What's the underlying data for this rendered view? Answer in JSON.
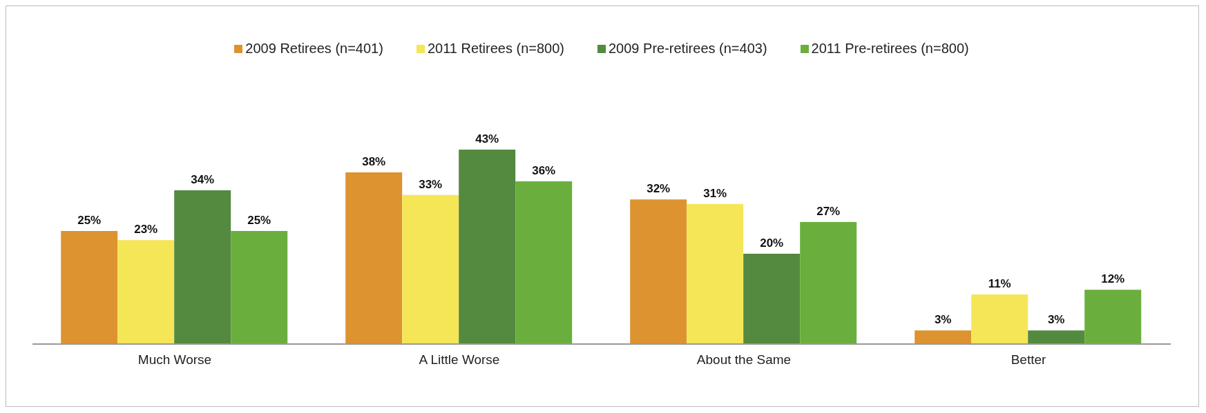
{
  "chart_data": {
    "type": "bar",
    "categories": [
      "Much Worse",
      "A Little Worse",
      "About the Same",
      "Better"
    ],
    "series": [
      {
        "name": "2009 Retirees (n=401)",
        "color": "#dd9330",
        "values": [
          25,
          38,
          32,
          3
        ],
        "value_labels": [
          "25%",
          "38%",
          "32%",
          "3%"
        ]
      },
      {
        "name": "2011 Retirees (n=800)",
        "color": "#f5e658",
        "values": [
          23,
          33,
          31,
          11
        ],
        "value_labels": [
          "23%",
          "33%",
          "31%",
          "11%"
        ]
      },
      {
        "name": "2009 Pre-retirees (n=403)",
        "color": "#548a3f",
        "values": [
          34,
          43,
          20,
          3
        ],
        "value_labels": [
          "34%",
          "43%",
          "20%",
          "3%"
        ]
      },
      {
        "name": "2011 Pre-retirees (n=800)",
        "color": "#6aaf3d",
        "values": [
          25,
          36,
          27,
          12
        ],
        "value_labels": [
          "25%",
          "36%",
          "27%",
          "12%"
        ]
      }
    ],
    "legend": "top"
  }
}
